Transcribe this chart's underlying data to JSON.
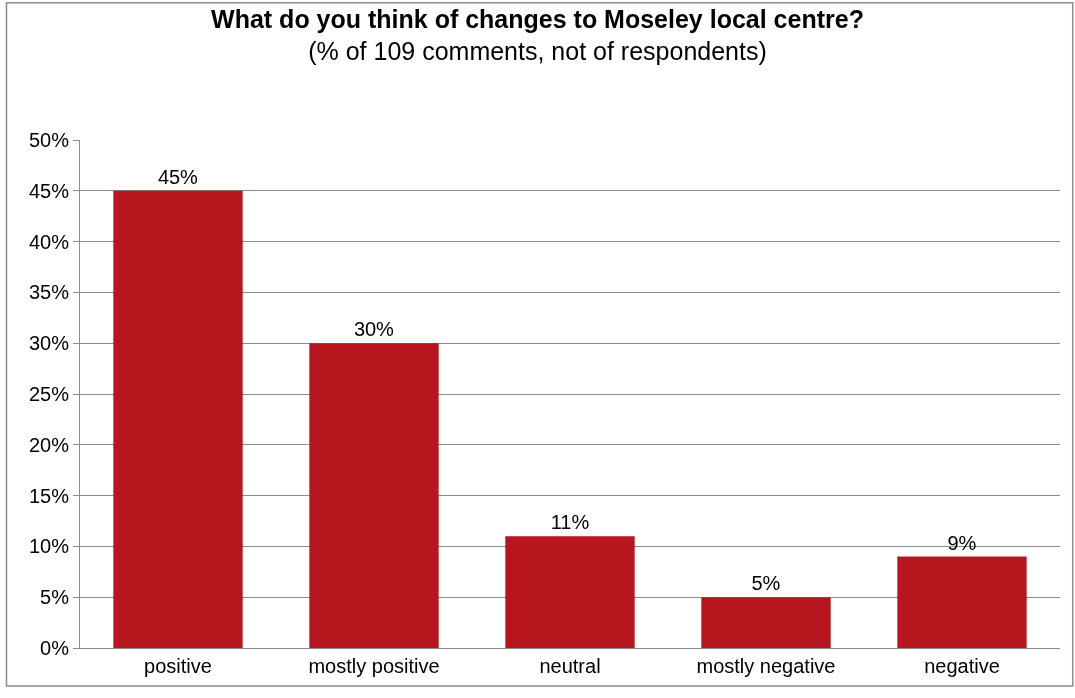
{
  "chart_data": {
    "type": "bar",
    "title": "What do you think of changes to Moseley local centre?",
    "subtitle": "(% of 109 comments, not of respondents)",
    "categories": [
      "positive",
      "mostly positive",
      "neutral",
      "mostly negative",
      "negative"
    ],
    "values": [
      45,
      30,
      11,
      5,
      9
    ],
    "value_labels": [
      "45%",
      "30%",
      "11%",
      "5%",
      "9%"
    ],
    "color": "#b8161e",
    "ylim": [
      0,
      50
    ],
    "yticks": [
      {
        "value": 0,
        "label": "0%"
      },
      {
        "value": 5,
        "label": "5%"
      },
      {
        "value": 10,
        "label": "10%"
      },
      {
        "value": 15,
        "label": "15%"
      },
      {
        "value": 20,
        "label": "20%"
      },
      {
        "value": 25,
        "label": "25%"
      },
      {
        "value": 30,
        "label": "30%"
      },
      {
        "value": 35,
        "label": "35%"
      },
      {
        "value": 40,
        "label": "40%"
      },
      {
        "value": 45,
        "label": "45%"
      },
      {
        "value": 50,
        "label": "50%"
      }
    ],
    "grid": "y",
    "legend": false
  }
}
